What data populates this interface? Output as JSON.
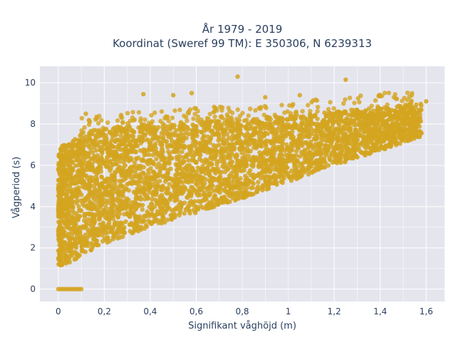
{
  "chart_data": {
    "type": "scatter",
    "title_lines": [
      "År 1979 - 2019",
      "Koordinat (Sweref 99 TM): E 350306, N 6239313"
    ],
    "xlabel": "Signifikant våghöjd (m)",
    "ylabel": "Vågperiod (s)",
    "xlim": [
      -0.08,
      1.68
    ],
    "ylim": [
      -0.6,
      10.8
    ],
    "x_ticks": [
      0,
      0.2,
      0.4,
      0.6,
      0.8,
      1,
      1.2,
      1.4,
      1.6
    ],
    "x_tick_labels": [
      "0",
      "0,2",
      "0,4",
      "0,6",
      "0,8",
      "1",
      "1,2",
      "1,4",
      "1,6"
    ],
    "y_ticks": [
      0,
      2,
      4,
      6,
      8,
      10
    ],
    "y_tick_labels": [
      "0",
      "2",
      "4",
      "6",
      "8",
      "10"
    ],
    "marker_color": "#d4a520",
    "grid": true,
    "legend": "none",
    "series": [
      {
        "description": "dense band, lower/upper envelope of wave period vs height",
        "envelope_x": [
          0,
          0.05,
          0.1,
          0.2,
          0.3,
          0.4,
          0.6,
          0.8,
          1.0,
          1.2,
          1.4,
          1.55
        ],
        "envelope_lower": [
          1.1,
          1.3,
          1.6,
          2.2,
          2.6,
          3.0,
          3.7,
          4.4,
          5.2,
          6.0,
          6.7,
          7.3
        ],
        "envelope_upper": [
          6.8,
          7.2,
          7.6,
          7.8,
          7.9,
          8.0,
          8.1,
          8.2,
          8.4,
          8.6,
          8.8,
          9.0
        ]
      },
      {
        "description": "zero-period points",
        "x": [
          0.0,
          0.01,
          0.02,
          0.03,
          0.04,
          0.05,
          0.06,
          0.07,
          0.08,
          0.09,
          0.1
        ],
        "y": [
          0,
          0,
          0,
          0,
          0,
          0,
          0,
          0,
          0,
          0,
          0
        ]
      },
      {
        "description": "outliers",
        "x": [
          0.78,
          1.25,
          0.37,
          0.58,
          0.5,
          1.6,
          1.4,
          0.12,
          0.9,
          1.05
        ],
        "y": [
          10.3,
          10.15,
          9.45,
          9.5,
          9.4,
          9.1,
          9.35,
          8.5,
          9.3,
          9.4
        ]
      }
    ]
  }
}
